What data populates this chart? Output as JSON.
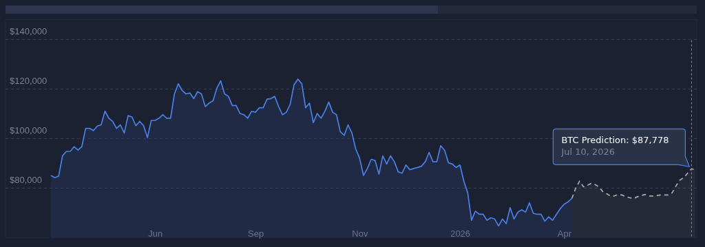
{
  "chart_data": {
    "type": "area",
    "categories": [
      null,
      null,
      null,
      null,
      null,
      null,
      null,
      null,
      null,
      null,
      null,
      null,
      null,
      null,
      null,
      null,
      null,
      null,
      null,
      null,
      null,
      null,
      null,
      null,
      null,
      null,
      null,
      "Jun",
      null,
      null,
      null,
      null,
      null,
      null,
      null,
      null,
      null,
      null,
      null,
      null,
      null,
      null,
      null,
      null,
      null,
      null,
      null,
      null,
      null,
      null,
      null,
      null,
      null,
      "Sep",
      null,
      null,
      null,
      null,
      null,
      null,
      null,
      null,
      null,
      null,
      null,
      null,
      null,
      null,
      null,
      null,
      null,
      null,
      null,
      null,
      null,
      null,
      null,
      null,
      null,
      null,
      "Nov",
      null,
      null,
      null,
      null,
      null,
      null,
      null,
      null,
      null,
      null,
      null,
      null,
      null,
      null,
      null,
      null,
      null,
      null,
      null,
      null,
      null,
      null,
      null,
      null,
      null,
      "2026",
      null,
      null,
      null,
      null,
      null,
      null,
      null,
      null,
      null,
      null,
      null,
      null,
      null,
      null,
      null,
      null,
      null,
      null,
      null,
      null,
      null,
      null,
      null,
      null,
      null,
      null,
      "Apr",
      null,
      null,
      null,
      null,
      null,
      null,
      null,
      null,
      null,
      null,
      null,
      null,
      null,
      null,
      null,
      null,
      null,
      null,
      null,
      null,
      null,
      null,
      null,
      null,
      null,
      null,
      null,
      null,
      null,
      null,
      null,
      null,
      null,
      null
    ],
    "series": [
      {
        "color": "#4a80e8",
        "values": [
          85100,
          84200,
          84800,
          93000,
          94800,
          94800,
          96700,
          95300,
          96700,
          104100,
          104100,
          103200,
          105000,
          105500,
          111000,
          108200,
          106900,
          104100,
          105500,
          102200,
          109200,
          108700,
          105200,
          106900,
          105200,
          100400,
          107300,
          107300,
          108200,
          109600,
          108200,
          108200,
          118000,
          122100,
          119400,
          118000,
          118400,
          116100,
          118900,
          118000,
          112900,
          114300,
          115200,
          120300,
          123300,
          118000,
          117000,
          113300,
          113300,
          110100,
          109600,
          108200,
          111000,
          110600,
          112400,
          112400,
          115900,
          116100,
          117000,
          112900,
          109600,
          110600,
          113800,
          121700,
          124000,
          122100,
          112400,
          114300,
          106400,
          110100,
          108200,
          111000,
          114700,
          110600,
          109600,
          102700,
          101300,
          105500,
          102200,
          95700,
          92000,
          85100,
          87900,
          91600,
          91100,
          85600,
          93000,
          89700,
          93000,
          90600,
          86500,
          86000,
          89300,
          87400,
          87900,
          88300,
          88800,
          90600,
          94400,
          90600,
          90600,
          97100,
          95300,
          90200,
          89700,
          88300,
          89300,
          82800,
          78100,
          67000,
          70700,
          69400,
          69400,
          67000,
          68000,
          67500,
          64700,
          67500,
          65600,
          72100,
          67500,
          70300,
          71200,
          70300,
          74000,
          69800,
          69400,
          69400,
          66600,
          68400,
          67000,
          69400,
          71700,
          73500,
          74400,
          75800,
          null,
          null,
          null,
          null,
          null,
          null,
          null,
          null,
          null,
          null,
          null,
          null,
          null,
          null,
          null,
          null,
          null,
          null,
          null,
          null,
          null,
          null,
          null,
          null,
          null,
          null,
          null,
          null,
          null,
          null,
          null,
          null
        ]
      },
      {
        "color": "#a9a9a9",
        "line_style": "dashed",
        "values": [
          null,
          null,
          null,
          null,
          null,
          null,
          null,
          null,
          null,
          null,
          null,
          null,
          null,
          null,
          null,
          null,
          null,
          null,
          null,
          null,
          null,
          null,
          null,
          null,
          null,
          null,
          null,
          null,
          null,
          null,
          null,
          null,
          null,
          null,
          null,
          null,
          null,
          null,
          null,
          null,
          null,
          null,
          null,
          null,
          null,
          null,
          null,
          null,
          null,
          null,
          null,
          null,
          null,
          null,
          null,
          null,
          null,
          null,
          null,
          null,
          null,
          null,
          null,
          null,
          null,
          null,
          null,
          null,
          null,
          null,
          null,
          null,
          null,
          null,
          null,
          null,
          null,
          null,
          null,
          null,
          null,
          null,
          null,
          null,
          null,
          null,
          null,
          null,
          null,
          null,
          null,
          null,
          null,
          null,
          null,
          null,
          null,
          null,
          null,
          null,
          null,
          null,
          null,
          null,
          null,
          null,
          null,
          null,
          null,
          null,
          null,
          null,
          null,
          null,
          null,
          null,
          null,
          null,
          null,
          null,
          null,
          null,
          null,
          null,
          null,
          null,
          null,
          null,
          null,
          null,
          null,
          null,
          null,
          null,
          null,
          75800,
          80000,
          82800,
          80500,
          81100,
          81900,
          81400,
          80500,
          78600,
          77700,
          76800,
          76800,
          77400,
          77200,
          76500,
          76100,
          75800,
          76500,
          77000,
          77400,
          76800,
          76800,
          77000,
          77200,
          77200,
          77200,
          78100,
          80900,
          83200,
          84200,
          86000,
          87778,
          87300
        ]
      }
    ],
    "ylim": [
      60000,
      148000
    ],
    "yticks": [
      {
        "value": 80000,
        "label": "$80,000"
      },
      {
        "value": 100000,
        "label": "$100,000"
      },
      {
        "value": 120000,
        "label": "$120,000"
      },
      {
        "value": 140000,
        "label": "$140,000"
      }
    ],
    "grid": "y",
    "annotations": [
      "BTC Prediction: $87,778\nJul 10, 2026"
    ]
  }
}
